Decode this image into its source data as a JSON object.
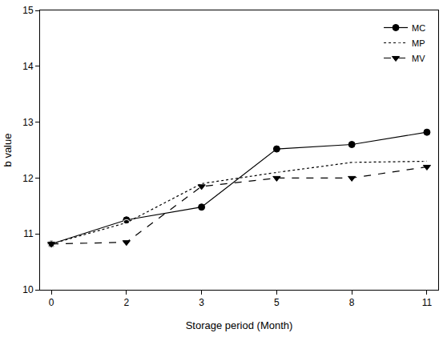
{
  "chart_data": {
    "type": "line",
    "x_label": "Storage period (Month)",
    "y_label": "b value",
    "categories": [
      "0",
      "2",
      "3",
      "5",
      "8",
      "11"
    ],
    "series": [
      {
        "name": "MC",
        "color": "#000000",
        "marker": "circle",
        "line_style": "solid",
        "values": [
          10.82,
          11.25,
          11.48,
          12.52,
          12.6,
          12.82
        ]
      },
      {
        "name": "MP",
        "color": "#000000",
        "marker": "circle-open",
        "line_style": "dot",
        "values": [
          10.82,
          11.2,
          11.9,
          12.1,
          12.28,
          12.3
        ]
      },
      {
        "name": "MV",
        "color": "#000000",
        "marker": "triangle-down",
        "line_style": "dash",
        "values": [
          10.82,
          10.85,
          11.85,
          12.0,
          12.0,
          12.2
        ]
      }
    ],
    "ylim": [
      10,
      15
    ],
    "yticks": [
      10,
      11,
      12,
      13,
      14,
      15
    ],
    "grid": false,
    "legend": "top right"
  }
}
